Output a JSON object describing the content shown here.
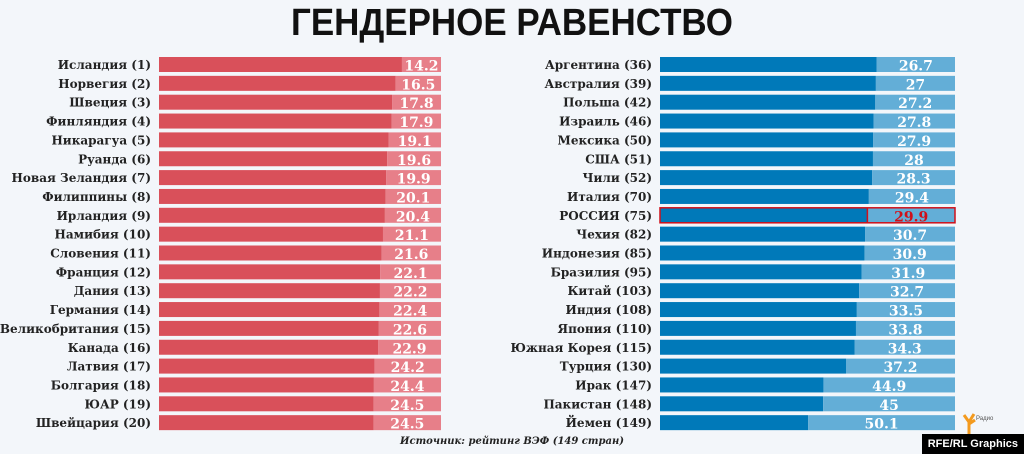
{
  "chart_data": [
    {
      "type": "bar",
      "orientation": "horizontal",
      "title": "ГЕНДЕРНОЕ РАВЕНСТВО",
      "categories": [
        "Исландия (1)",
        "Норвегия (2)",
        "Швеция (3)",
        "Финляндия (4)",
        "Никарагуа (5)",
        "Руанда (6)",
        "Новая Зеландия (7)",
        "Филиппины (8)",
        "Ирландия (9)",
        "Намибия (10)",
        "Словения (11)",
        "Франция (12)",
        "Дания (13)",
        "Германия (14)",
        "Великобритания (15)",
        "Канада (16)",
        "Латвия (17)",
        "Болгария (18)",
        "ЮАР (19)",
        "Швейцария (20)"
      ],
      "values": [
        "14.2",
        "16.5",
        "17.8",
        "17.9",
        "19.1",
        "19.6",
        "19.9",
        "20.1",
        "20.4",
        "21.1",
        "21.6",
        "22.1",
        "22.2",
        "22.4",
        "22.6",
        "22.9",
        "24.2",
        "24.4",
        "24.5",
        "24.5"
      ],
      "colors": {
        "bar": "#d9505a",
        "value_bar": "#e77f89"
      }
    },
    {
      "type": "bar",
      "orientation": "horizontal",
      "categories": [
        "Аргентина (36)",
        "Австралия (39)",
        "Польша (42)",
        "Израиль (46)",
        "Мексика (50)",
        "США (51)",
        "Чили (52)",
        "Италия (70)",
        "РОССИЯ (75)",
        "Чехия (82)",
        "Индонезия (85)",
        "Бразилия (95)",
        "Китай (103)",
        "Индия (108)",
        "Япония (110)",
        "Южная Корея (115)",
        "Турция (130)",
        "Ирак (147)",
        "Пакистан (148)",
        "Йемен (149)"
      ],
      "values": [
        "26.7",
        "27",
        "27.2",
        "27.8",
        "27.9",
        "28",
        "28.3",
        "29.4",
        "29.9",
        "30.7",
        "30.9",
        "31.9",
        "32.7",
        "33.5",
        "33.8",
        "34.3",
        "37.2",
        "44.9",
        "45",
        "50.1"
      ],
      "highlight": "РОССИЯ (75)",
      "colors": {
        "bar": "#0079b9",
        "value_bar": "#63aed7",
        "highlight": "#d0101a"
      }
    }
  ],
  "source": "Источник: рейтинг ВЭФ (149 стран)",
  "credit": "RFE/RL Graphics",
  "logo_text": "Радио"
}
